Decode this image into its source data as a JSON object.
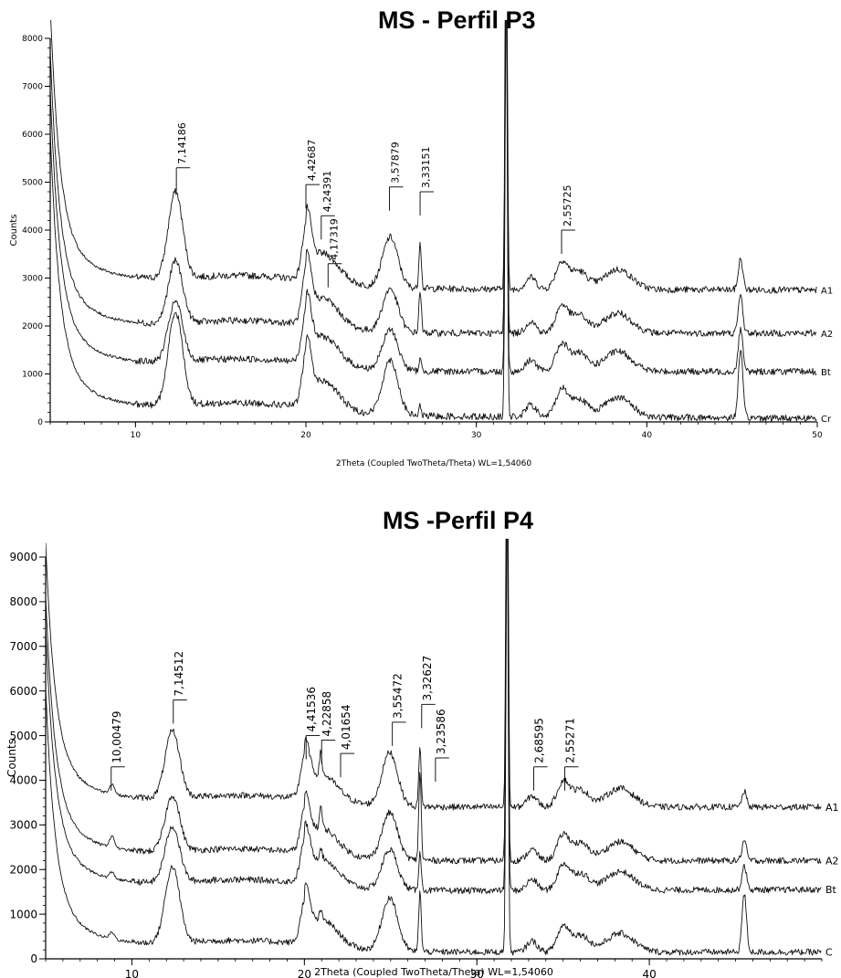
{
  "chart_data": [
    {
      "type": "line",
      "title": "MS - Perfil P3",
      "xlabel": "2Theta (Coupled TwoTheta/Theta) WL=1,54060",
      "ylabel": "Counts",
      "xlim": [
        5,
        50
      ],
      "ylim": [
        0,
        8000
      ],
      "x_ticks": [
        10,
        20,
        30,
        40,
        50
      ],
      "y_ticks": [
        0,
        1000,
        2000,
        3000,
        4000,
        5000,
        6000,
        7000,
        8000
      ],
      "grid": false,
      "series": [
        {
          "name": "A1",
          "offset": 2800
        },
        {
          "name": "A2",
          "offset": 1850
        },
        {
          "name": "Bt",
          "offset": 1050
        },
        {
          "name": "Cr",
          "offset": 150
        }
      ],
      "series_end_values": [
        2750,
        1850,
        1050,
        80
      ],
      "peaks": [
        {
          "x": 12.4,
          "label": "7,14186",
          "y": 5300
        },
        {
          "x": 20.0,
          "label": "4,42687",
          "y": 4950
        },
        {
          "x": 20.9,
          "label": "4,24391",
          "y": 4300
        },
        {
          "x": 21.3,
          "label": "4,17319",
          "y": 3300
        },
        {
          "x": 24.9,
          "label": "3,57879",
          "y": 4900
        },
        {
          "x": 26.7,
          "label": "3,33151",
          "y": 4800
        },
        {
          "x": 35.0,
          "label": "2,55725",
          "y": 4000
        }
      ]
    },
    {
      "type": "line",
      "title": "MS -Perfil P4",
      "xlabel": "2Theta (Coupled TwoTheta/Theta) WL=1,54060",
      "ylabel": "Counts",
      "xlim": [
        5,
        50
      ],
      "ylim": [
        0,
        9000
      ],
      "x_ticks": [
        10,
        20,
        30,
        40
      ],
      "y_ticks": [
        0,
        1000,
        2000,
        3000,
        4000,
        5000,
        6000,
        7000,
        8000,
        9000
      ],
      "grid": false,
      "series": [
        {
          "name": "A1",
          "offset": 3400
        },
        {
          "name": "A2",
          "offset": 2200
        },
        {
          "name": "Bt",
          "offset": 1500
        },
        {
          "name": "C",
          "offset": 150
        }
      ],
      "series_end_values": [
        3400,
        2200,
        1550,
        150
      ],
      "peaks": [
        {
          "x": 8.8,
          "label": "10,00479",
          "y": 4300
        },
        {
          "x": 12.4,
          "label": "7,14512",
          "y": 5800
        },
        {
          "x": 20.1,
          "label": "4,41536",
          "y": 5000
        },
        {
          "x": 21.0,
          "label": "4,22858",
          "y": 4900
        },
        {
          "x": 22.1,
          "label": "4,01654",
          "y": 4600
        },
        {
          "x": 25.1,
          "label": "3,55472",
          "y": 5300
        },
        {
          "x": 26.8,
          "label": "3,32627",
          "y": 5700
        },
        {
          "x": 27.6,
          "label": "3,23586",
          "y": 4500
        },
        {
          "x": 33.3,
          "label": "2,68595",
          "y": 4300
        },
        {
          "x": 35.1,
          "label": "2,55271",
          "y": 4300
        }
      ]
    }
  ]
}
